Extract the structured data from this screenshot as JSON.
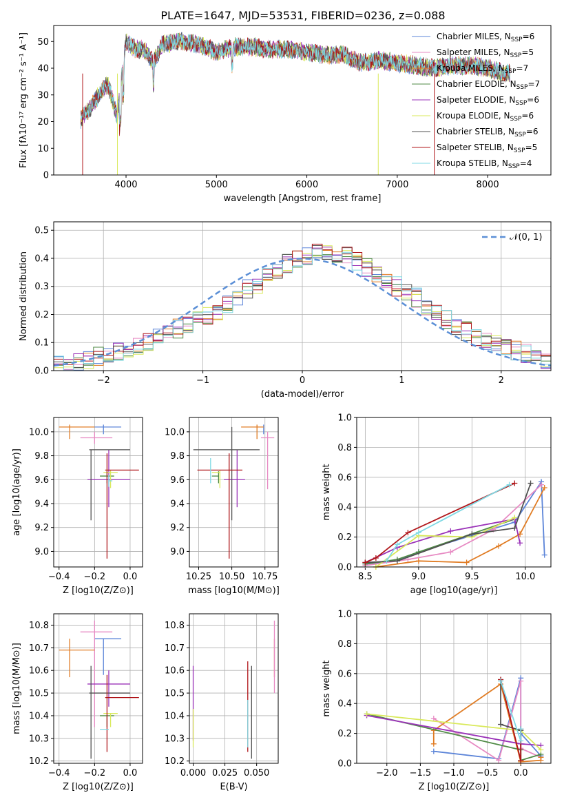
{
  "figure_title": "PLATE=1647, MJD=53531, FIBERID=0236, z=0.088",
  "colors": {
    "Chabrier MILES": "#5b84d8",
    "Salpeter MILES": "#e78ac3",
    "Kroupa MILES": "#e07b22",
    "Chabrier ELODIE": "#4f8a45",
    "Salpeter ELODIE": "#9a32b8",
    "Kroupa ELODIE": "#d9e95a",
    "Chabrier STELIB": "#505050",
    "Salpeter STELIB": "#b0161a",
    "Kroupa STELIB": "#7fd9e4",
    "normal": "#5b8fd6",
    "grid": "#b0b0b0"
  },
  "chart_data": [
    {
      "type": "line",
      "title": "PLATE=1647, MJD=53531, FIBERID=0236, z=0.088",
      "xlabel": "wavelength [Angstrom, rest frame]",
      "ylabel": "Flux [fλ10⁻¹⁷ erg cm⁻² s⁻¹ A⁻¹]",
      "xlim": [
        3200,
        8700
      ],
      "ylim": [
        0,
        56
      ],
      "xticks": [
        4000,
        5000,
        6000,
        7000,
        8000
      ],
      "yticks": [
        0,
        10,
        20,
        30,
        40,
        50
      ],
      "grid": false,
      "legend_position": "upper-right",
      "legend": [
        "Chabrier MILES, N_SSP=6",
        "Salpeter MILES, N_SSP=5",
        "Kroupa MILES, N_SSP=7",
        "Chabrier ELODIE, N_SSP=7",
        "Salpeter ELODIE, N_SSP=6",
        "Kroupa ELODIE, N_SSP=6",
        "Chabrier STELIB, N_SSP=6",
        "Salpeter STELIB, N_SSP=5",
        "Kroupa STELIB, N_SSP=4"
      ],
      "spectrum_envelope": {
        "x": [
          3500,
          3600,
          3700,
          3800,
          3900,
          4000,
          4100,
          4200,
          4300,
          4400,
          4600,
          4800,
          5000,
          5200,
          5400,
          5600,
          5800,
          6000,
          6200,
          6400,
          6600,
          6800,
          7000,
          7200,
          7400,
          7600,
          7800,
          8000,
          8200
        ],
        "y": [
          21,
          25,
          30,
          34,
          22,
          50,
          47,
          47,
          42,
          49,
          50,
          49,
          46,
          48,
          48,
          47,
          47,
          46,
          45,
          45,
          42,
          43,
          42,
          41,
          40,
          41,
          41,
          40,
          38
        ]
      }
    },
    {
      "type": "histogram",
      "xlabel": "(data-model)/error",
      "ylabel": "Normed distribution",
      "xlim": [
        -2.5,
        2.5
      ],
      "ylim": [
        0,
        0.53
      ],
      "xticks": [
        -2,
        -1,
        0,
        1,
        2
      ],
      "yticks": [
        0.0,
        0.1,
        0.2,
        0.3,
        0.4,
        0.5
      ],
      "grid": true,
      "legend": [
        "𝒩(0, 1)"
      ],
      "legend_position": "upper-right",
      "bin_width": 0.1,
      "bin_start": -2.5,
      "mean_distribution": [
        0.02,
        0.03,
        0.03,
        0.04,
        0.05,
        0.06,
        0.07,
        0.07,
        0.09,
        0.1,
        0.12,
        0.13,
        0.15,
        0.16,
        0.18,
        0.2,
        0.21,
        0.24,
        0.26,
        0.29,
        0.31,
        0.33,
        0.36,
        0.38,
        0.4,
        0.41,
        0.43,
        0.43,
        0.42,
        0.41,
        0.39,
        0.37,
        0.35,
        0.33,
        0.3,
        0.28,
        0.26,
        0.23,
        0.21,
        0.18,
        0.16,
        0.14,
        0.12,
        0.11,
        0.09,
        0.08,
        0.07,
        0.06,
        0.05,
        0.04
      ]
    },
    {
      "type": "scatter",
      "xlabel": "Z [log10(Z/Z⊙)]",
      "ylabel": "age [log10(age/yr)]",
      "xlim": [
        -0.43,
        0.07
      ],
      "ylim": [
        8.87,
        10.12
      ],
      "xticks": [
        -0.4,
        -0.2,
        0.0
      ],
      "yticks": [
        9.0,
        9.2,
        9.4,
        9.6,
        9.8,
        10.0
      ],
      "grid": true,
      "points": [
        {
          "model": "Chabrier MILES",
          "x": -0.15,
          "y": 10.04,
          "xerr": [
            0.05,
            0.1
          ],
          "yerr": [
            0.06,
            0.02
          ]
        },
        {
          "model": "Salpeter MILES",
          "x": -0.2,
          "y": 9.95,
          "xerr": [
            0.08,
            0.1
          ],
          "yerr": [
            0.05,
            0.05
          ]
        },
        {
          "model": "Kroupa MILES",
          "x": -0.34,
          "y": 10.04,
          "xerr": [
            0.06,
            0.14
          ],
          "yerr": [
            0.1,
            0.02
          ]
        },
        {
          "model": "Chabrier ELODIE",
          "x": -0.13,
          "y": 9.63,
          "xerr": [
            0.04,
            0.04
          ],
          "yerr": [
            0.06,
            0.04
          ]
        },
        {
          "model": "Salpeter ELODIE",
          "x": -0.12,
          "y": 9.6,
          "xerr": [
            0.12,
            0.12
          ],
          "yerr": [
            0.23,
            0.25
          ]
        },
        {
          "model": "Kroupa ELODIE",
          "x": -0.11,
          "y": 9.66,
          "xerr": [
            0.04,
            0.04
          ],
          "yerr": [
            0.13,
            0.02
          ]
        },
        {
          "model": "Chabrier STELIB",
          "x": -0.22,
          "y": 9.85,
          "xerr": [
            0.01,
            0.22
          ],
          "yerr": [
            0.59,
            0.0
          ]
        },
        {
          "model": "Salpeter STELIB",
          "x": -0.13,
          "y": 9.68,
          "xerr": [
            0.01,
            0.18
          ],
          "yerr": [
            0.74,
            0.14
          ]
        },
        {
          "model": "Kroupa STELIB",
          "x": -0.12,
          "y": 9.59,
          "xerr": [
            0.0,
            0.02
          ],
          "yerr": [
            0.05,
            0.05
          ]
        }
      ]
    },
    {
      "type": "scatter",
      "xlabel": "mass [log10(M/M⊙)]",
      "ylabel": "",
      "xlim": [
        10.18,
        10.85
      ],
      "ylim": [
        8.87,
        10.12
      ],
      "xticks": [
        10.25,
        10.5,
        10.75
      ],
      "yticks": [
        9.0,
        9.2,
        9.4,
        9.6,
        9.8,
        10.0
      ],
      "grid": true,
      "points": [
        {
          "model": "Chabrier MILES",
          "x": 10.74,
          "y": 10.04,
          "yerr": [
            0.06,
            0.02
          ]
        },
        {
          "model": "Salpeter MILES",
          "x": 10.77,
          "y": 9.95,
          "xerr": [
            0.05,
            0.05
          ],
          "yerr": [
            0.43,
            0.05
          ]
        },
        {
          "model": "Kroupa MILES",
          "x": 10.69,
          "y": 10.04,
          "xerr": [
            0.12,
            0.05
          ],
          "yerr": [
            0.1,
            0.02
          ]
        },
        {
          "model": "Chabrier ELODIE",
          "x": 10.4,
          "y": 9.63,
          "xerr": [
            0.05,
            0.0
          ],
          "yerr": [
            0.06,
            0.04
          ]
        },
        {
          "model": "Salpeter ELODIE",
          "x": 10.54,
          "y": 9.6,
          "xerr": [
            0.1,
            0.06
          ],
          "yerr": [
            0.23,
            0.25
          ]
        },
        {
          "model": "Kroupa ELODIE",
          "x": 10.41,
          "y": 9.66,
          "xerr": [
            0.06,
            0.0
          ],
          "yerr": [
            0.13,
            0.02
          ]
        },
        {
          "model": "Chabrier STELIB",
          "x": 10.5,
          "y": 9.85,
          "xerr": [
            0.29,
            0.21
          ],
          "yerr": [
            0.59,
            0.19
          ]
        },
        {
          "model": "Salpeter STELIB",
          "x": 10.48,
          "y": 9.68,
          "xerr": [
            0.24,
            0.1
          ],
          "yerr": [
            0.74,
            0.14
          ]
        },
        {
          "model": "Kroupa STELIB",
          "x": 10.34,
          "y": 9.7,
          "yerr": [
            0.13,
            0.08
          ]
        }
      ]
    },
    {
      "type": "line",
      "xlabel": "age [log10(age/yr)]",
      "ylabel": "mass weight",
      "xlim": [
        8.42,
        10.24
      ],
      "ylim": [
        0,
        1.0
      ],
      "xticks": [
        8.5,
        9.0,
        9.5,
        10.0
      ],
      "yticks": [
        0.0,
        0.2,
        0.4,
        0.6,
        0.8,
        1.0
      ],
      "grid": true,
      "series": [
        {
          "name": "Chabrier MILES",
          "x": [
            8.5,
            8.8,
            9.0,
            9.9,
            10.15,
            10.18
          ],
          "y": [
            0.02,
            0.04,
            0.1,
            0.3,
            0.57,
            0.08
          ]
        },
        {
          "name": "Salpeter MILES",
          "x": [
            8.5,
            8.9,
            9.3,
            9.7,
            10.15
          ],
          "y": [
            0.01,
            0.05,
            0.1,
            0.25,
            0.55
          ]
        },
        {
          "name": "Kroupa MILES",
          "x": [
            8.6,
            9.0,
            9.45,
            9.75,
            9.95,
            10.18
          ],
          "y": [
            0.0,
            0.04,
            0.03,
            0.14,
            0.22,
            0.53
          ]
        },
        {
          "name": "Chabrier ELODIE",
          "x": [
            8.5,
            8.8,
            9.0,
            9.9
          ],
          "y": [
            0.02,
            0.05,
            0.1,
            0.32
          ]
        },
        {
          "name": "Salpeter ELODIE",
          "x": [
            8.5,
            8.8,
            9.3,
            9.9,
            9.95
          ],
          "y": [
            0.03,
            0.13,
            0.24,
            0.32,
            0.16
          ]
        },
        {
          "name": "Kroupa ELODIE",
          "x": [
            8.6,
            9.0,
            9.5,
            9.9
          ],
          "y": [
            0.0,
            0.21,
            0.2,
            0.33
          ]
        },
        {
          "name": "Chabrier STELIB",
          "x": [
            8.5,
            8.8,
            9.5,
            9.9,
            10.05
          ],
          "y": [
            0.03,
            0.04,
            0.22,
            0.26,
            0.56
          ]
        },
        {
          "name": "Salpeter STELIB",
          "x": [
            8.5,
            8.6,
            8.9,
            9.9
          ],
          "y": [
            0.03,
            0.06,
            0.23,
            0.56
          ]
        },
        {
          "name": "Kroupa STELIB",
          "x": [
            8.7,
            8.8,
            9.0,
            9.85
          ],
          "y": [
            0.04,
            0.15,
            0.23,
            0.55
          ]
        }
      ]
    },
    {
      "type": "scatter",
      "xlabel": "Z [log10(Z/Z⊙)]",
      "ylabel": "mass [log10(M/M⊙)]",
      "xlim": [
        -0.43,
        0.07
      ],
      "ylim": [
        10.19,
        10.85
      ],
      "xticks": [
        -0.4,
        -0.2,
        0.0
      ],
      "yticks": [
        10.2,
        10.3,
        10.4,
        10.5,
        10.6,
        10.7,
        10.8
      ],
      "grid": true,
      "points": [
        {
          "model": "Chabrier MILES",
          "x": -0.15,
          "y": 10.74,
          "xerr": [
            0.05,
            0.1
          ],
          "yerr": [
            0.16,
            0.0
          ]
        },
        {
          "model": "Salpeter MILES",
          "x": -0.2,
          "y": 10.77,
          "xerr": [
            0.08,
            0.1
          ],
          "yerr": [
            0.42,
            0.05
          ]
        },
        {
          "model": "Kroupa MILES",
          "x": -0.34,
          "y": 10.69,
          "xerr": [
            0.06,
            0.14
          ],
          "yerr": [
            0.12,
            0.05
          ]
        },
        {
          "model": "Chabrier ELODIE",
          "x": -0.13,
          "y": 10.4,
          "xerr": [
            0.04,
            0.04
          ],
          "yerr": [
            0.05,
            0.0
          ]
        },
        {
          "model": "Salpeter ELODIE",
          "x": -0.12,
          "y": 10.54,
          "xerr": [
            0.12,
            0.12
          ],
          "yerr": [
            0.1,
            0.06
          ]
        },
        {
          "model": "Kroupa ELODIE",
          "x": -0.11,
          "y": 10.41,
          "xerr": [
            0.04,
            0.04
          ],
          "yerr": [
            0.06,
            0.0
          ]
        },
        {
          "model": "Chabrier STELIB",
          "x": -0.22,
          "y": 10.5,
          "xerr": [
            0.01,
            0.22
          ],
          "yerr": [
            0.29,
            0.12
          ]
        },
        {
          "model": "Salpeter STELIB",
          "x": -0.13,
          "y": 10.48,
          "xerr": [
            0.01,
            0.18
          ],
          "yerr": [
            0.24,
            0.1
          ]
        },
        {
          "model": "Kroupa STELIB",
          "x": -0.12,
          "y": 10.34,
          "xerr": [
            0.05,
            0.0
          ],
          "yerr": [
            0.0,
            0.0
          ]
        }
      ]
    },
    {
      "type": "scatter",
      "xlabel": "E(B-V)",
      "ylabel": "",
      "xlim": [
        -0.003,
        0.067
      ],
      "ylim": [
        10.19,
        10.85
      ],
      "xticks": [
        0.0,
        0.025,
        0.05
      ],
      "yticks": [
        10.2,
        10.3,
        10.4,
        10.5,
        10.6,
        10.7,
        10.8
      ],
      "grid": true,
      "points": [
        {
          "model": "Salpeter ELODIE",
          "x": 0.0,
          "y": 10.5,
          "yerr": [
            0.21,
            0.12
          ]
        },
        {
          "model": "Kroupa ELODIE",
          "x": 0.0,
          "y": 10.35,
          "yerr": [
            0.09,
            0.08
          ]
        },
        {
          "model": "Salpeter STELIB",
          "x": 0.043,
          "y": 10.48,
          "yerr": [
            0.24,
            0.16
          ]
        },
        {
          "model": "Kroupa STELIB",
          "x": 0.043,
          "y": 10.34,
          "yerr": [
            0.08,
            0.13
          ]
        },
        {
          "model": "Chabrier STELIB",
          "x": 0.046,
          "y": 10.5,
          "yerr": [
            0.29,
            0.12
          ]
        },
        {
          "model": "Kroupa MILES",
          "x": 0.064,
          "y": 10.69,
          "yerr": [
            0.12,
            0.05
          ]
        },
        {
          "model": "Salpeter MILES",
          "x": 0.064,
          "y": 10.77,
          "yerr": [
            0.27,
            0.05
          ]
        }
      ]
    },
    {
      "type": "line",
      "xlabel": "Z [log10(Z/Z⊙)]",
      "ylabel": "mass weight",
      "xlim": [
        -2.45,
        0.45
      ],
      "ylim": [
        0,
        1.0
      ],
      "xticks": [
        -2.0,
        -1.5,
        -1.0,
        -0.5,
        0.0
      ],
      "yticks": [
        0.0,
        0.2,
        0.4,
        0.6,
        0.8,
        1.0
      ],
      "grid": true,
      "series": [
        {
          "name": "Chabrier MILES",
          "x": [
            -1.3,
            -0.33,
            0.0,
            0.0,
            0.3
          ],
          "y": [
            0.08,
            0.03,
            0.57,
            0.2,
            0.05
          ]
        },
        {
          "name": "Salpeter MILES",
          "x": [
            -1.3,
            -0.33,
            0.0,
            0.0,
            0.3
          ],
          "y": [
            0.3,
            0.02,
            0.55,
            0.1,
            0.04
          ]
        },
        {
          "name": "Kroupa MILES",
          "x": [
            -1.3,
            -1.3,
            -0.3,
            0.0,
            0.3,
            0.3
          ],
          "y": [
            0.13,
            0.22,
            0.53,
            0.01,
            0.02,
            0.04
          ]
        },
        {
          "name": "Chabrier ELODIE",
          "x": [
            -2.3,
            0.0,
            0.0,
            0.3
          ],
          "y": [
            0.33,
            0.09,
            0.02,
            0.06
          ]
        },
        {
          "name": "Salpeter ELODIE",
          "x": [
            -2.3,
            0.0,
            0.3
          ],
          "y": [
            0.32,
            0.13,
            0.12
          ]
        },
        {
          "name": "Kroupa ELODIE",
          "x": [
            -2.3,
            0.0,
            0.3
          ],
          "y": [
            0.33,
            0.22,
            0.09
          ]
        },
        {
          "name": "Chabrier STELIB",
          "x": [
            -0.3,
            -0.3,
            0.0,
            0.0
          ],
          "y": [
            0.56,
            0.26,
            0.22,
            0.02
          ]
        },
        {
          "name": "Salpeter STELIB",
          "x": [
            -0.3,
            0.0,
            0.0
          ],
          "y": [
            0.56,
            0.02,
            0.23
          ]
        },
        {
          "name": "Kroupa STELIB",
          "x": [
            -0.3,
            0.0,
            0.0
          ],
          "y": [
            0.55,
            0.15,
            0.23
          ]
        }
      ]
    }
  ]
}
